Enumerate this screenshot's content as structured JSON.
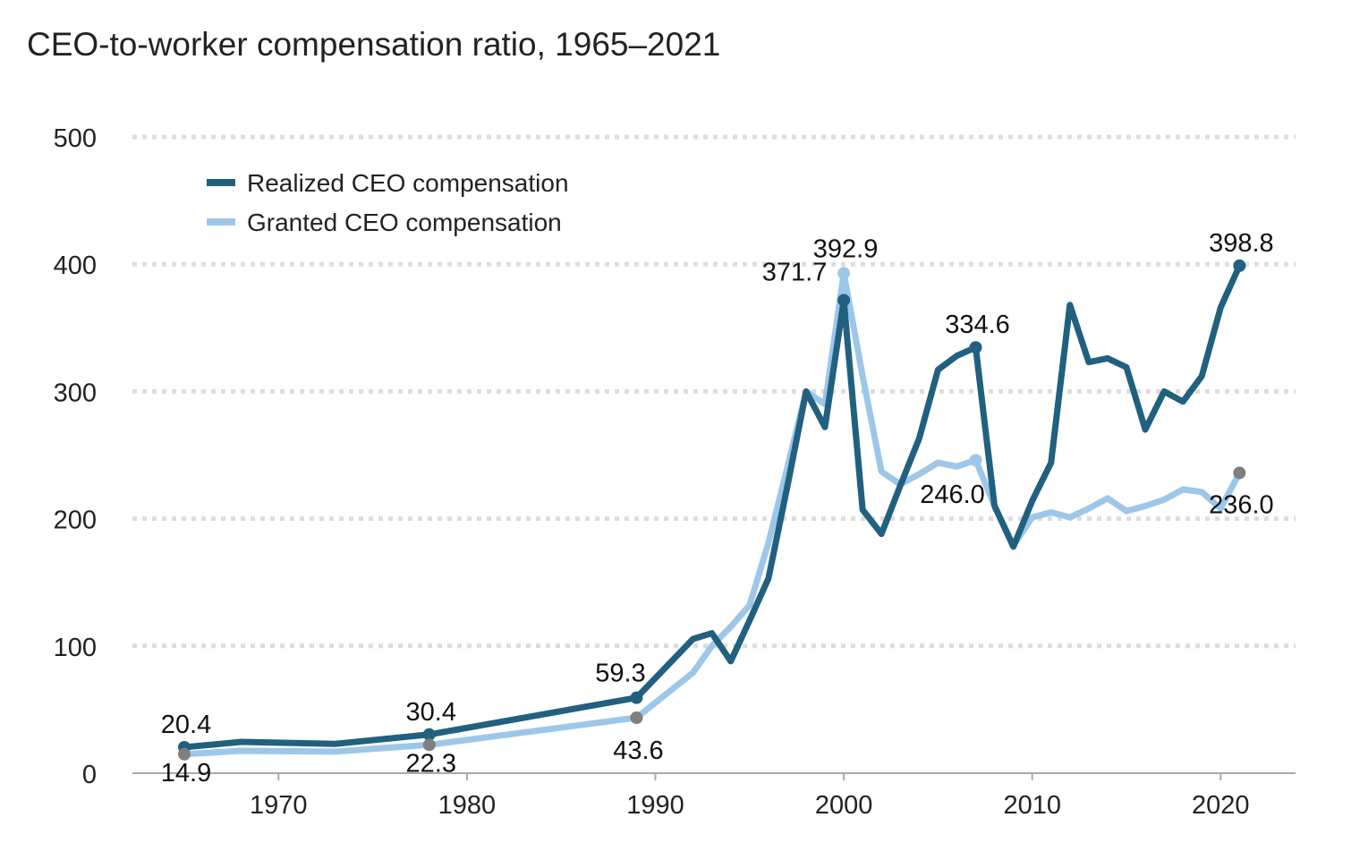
{
  "chart_data": {
    "type": "line",
    "title": "CEO-to-worker compensation ratio, 1965–2021",
    "xlabel": "",
    "ylabel": "",
    "xlim": [
      1962.5,
      2023.8
    ],
    "ylim": [
      0,
      500
    ],
    "grid": true,
    "legend_position": "top-left",
    "yticks": [
      0,
      100,
      200,
      300,
      400,
      500
    ],
    "xticks": [
      1970,
      1980,
      1990,
      2000,
      2010,
      2020
    ],
    "colors": {
      "realized": "#21607f",
      "granted": "#9cc7e9",
      "marker_gray": "#7f7f7f",
      "grid": "#dddddd",
      "axis": "#aaaaaa"
    },
    "series": [
      {
        "name": "Realized CEO compensation",
        "x": [
          1965,
          1968,
          1973,
          1978,
          1989,
          1992,
          1993,
          1994,
          1995,
          1996,
          1997,
          1998,
          1999,
          2000,
          2001,
          2002,
          2003,
          2004,
          2005,
          2006,
          2007,
          2008,
          2009,
          2010,
          2011,
          2012,
          2013,
          2014,
          2015,
          2016,
          2017,
          2018,
          2019,
          2020,
          2021
        ],
        "values": [
          20.4,
          24.6,
          23.0,
          30.4,
          59.3,
          105.5,
          110,
          88,
          120,
          153,
          225,
          300,
          272,
          371.7,
          207,
          188,
          226,
          263,
          317,
          328,
          334.6,
          210,
          178,
          214,
          244,
          368,
          323,
          326,
          319,
          270,
          300,
          292,
          312,
          366,
          398.8
        ]
      },
      {
        "name": "Granted CEO compensation",
        "x": [
          1965,
          1968,
          1973,
          1978,
          1989,
          1992,
          1993,
          1994,
          1995,
          1996,
          1997,
          1998,
          1999,
          2000,
          2001,
          2002,
          2003,
          2004,
          2005,
          2006,
          2007,
          2008,
          2009,
          2010,
          2011,
          2012,
          2013,
          2014,
          2015,
          2016,
          2017,
          2018,
          2019,
          2020,
          2021
        ],
        "values": [
          14.9,
          17.6,
          17.0,
          22.3,
          43.6,
          79,
          100,
          115,
          132,
          181,
          240,
          300,
          290,
          392.9,
          312,
          237,
          227,
          235,
          244,
          241,
          246.0,
          210,
          179,
          201,
          205,
          201,
          208,
          216,
          206,
          210,
          215,
          223,
          221,
          208,
          236.0
        ]
      }
    ],
    "annotations": [
      {
        "series": 0,
        "year": 1965,
        "value": 20.4,
        "text": "20.4"
      },
      {
        "series": 1,
        "year": 1965,
        "value": 14.9,
        "text": "14.9"
      },
      {
        "series": 0,
        "year": 1978,
        "value": 30.4,
        "text": "30.4"
      },
      {
        "series": 1,
        "year": 1978,
        "value": 22.3,
        "text": "22.3"
      },
      {
        "series": 0,
        "year": 1989,
        "value": 59.3,
        "text": "59.3"
      },
      {
        "series": 1,
        "year": 1989,
        "value": 43.6,
        "text": "43.6"
      },
      {
        "series": 0,
        "year": 2000,
        "value": 371.7,
        "text": "371.7"
      },
      {
        "series": 1,
        "year": 2000,
        "value": 392.9,
        "text": "392.9"
      },
      {
        "series": 0,
        "year": 2007,
        "value": 334.6,
        "text": "334.6"
      },
      {
        "series": 1,
        "year": 2007,
        "value": 246.0,
        "text": "246.0"
      },
      {
        "series": 0,
        "year": 2021,
        "value": 398.8,
        "text": "398.8"
      },
      {
        "series": 1,
        "year": 2021,
        "value": 236.0,
        "text": "236.0"
      }
    ]
  }
}
